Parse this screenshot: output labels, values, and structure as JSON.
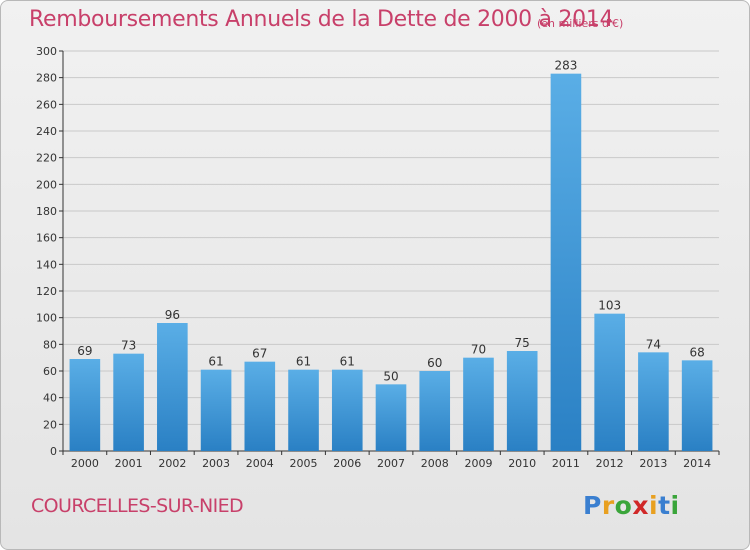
{
  "header": {
    "title": "Remboursements Annuels de la Dette de 2000 à 2014",
    "unit": "(en milliers d'€)"
  },
  "footer": {
    "commune": "COURCELLES-SUR-NIED",
    "logo_letters": [
      "P",
      "r",
      "o",
      "x",
      "i",
      "t",
      "i"
    ],
    "logo_colors": [
      "#3a7fd0",
      "#e8a020",
      "#3aa53a",
      "#d02828",
      "#e8a020",
      "#3a7fd0",
      "#3aa53a"
    ]
  },
  "colors": {
    "title": "#c8406a",
    "bar_light": "#5aaee6",
    "bar_dark": "#2a80c4",
    "axis": "#333333",
    "grid": "#c9c9c9"
  },
  "chart_data": {
    "type": "bar",
    "title": "Remboursements Annuels de la Dette de 2000 à 2014",
    "subtitle": "(en milliers d'€)",
    "xlabel": "",
    "ylabel": "",
    "categories": [
      "2000",
      "2001",
      "2002",
      "2003",
      "2004",
      "2005",
      "2006",
      "2007",
      "2008",
      "2009",
      "2010",
      "2011",
      "2012",
      "2013",
      "2014"
    ],
    "values": [
      69,
      73,
      96,
      61,
      67,
      61,
      61,
      50,
      60,
      70,
      75,
      283,
      103,
      74,
      68
    ],
    "ylim": [
      0,
      300
    ],
    "yticks": [
      0,
      20,
      40,
      60,
      80,
      100,
      120,
      140,
      160,
      180,
      200,
      220,
      240,
      260,
      280,
      300
    ],
    "grid": true,
    "data_labels": true
  }
}
